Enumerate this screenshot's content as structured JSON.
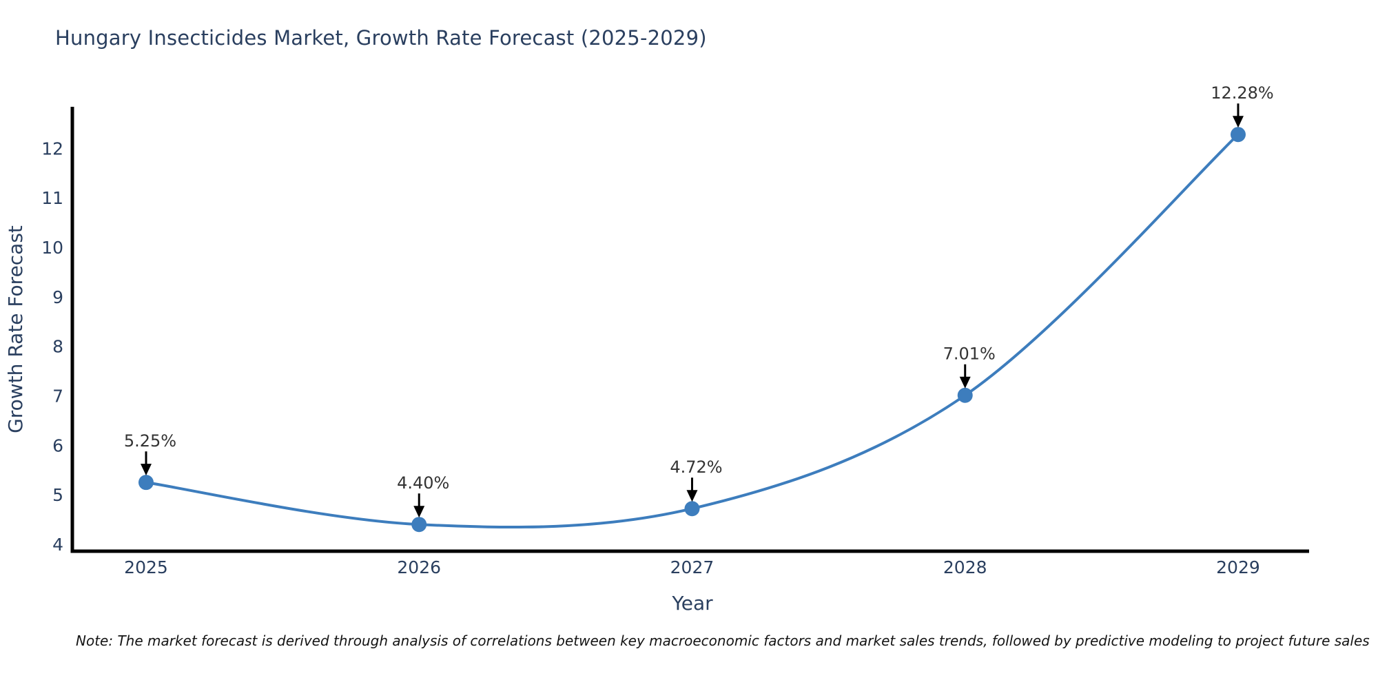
{
  "note": "Note: The market forecast is derived through analysis of correlations between key macroeconomic factors and market sales trends, followed by predictive modeling to project future sales",
  "chart_data": {
    "type": "line",
    "title": "Hungary Insecticides Market, Growth Rate Forecast (2025-2029)",
    "x": [
      2025,
      2026,
      2027,
      2028,
      2029
    ],
    "y": [
      5.25,
      4.4,
      4.72,
      7.01,
      12.28
    ],
    "point_labels": [
      "5.25%",
      "4.40%",
      "4.72%",
      "7.01%",
      "12.28%"
    ],
    "xlabel": "Year",
    "ylabel": "Growth Rate Forecast",
    "x_ticks": [
      "2025",
      "2026",
      "2027",
      "2028",
      "2029"
    ],
    "y_ticks": [
      "4",
      "5",
      "6",
      "7",
      "8",
      "9",
      "10",
      "11",
      "12"
    ],
    "xlim": [
      2024.73,
      2029.26
    ],
    "ylim": [
      3.86,
      12.84
    ],
    "grid": false,
    "legend": "none",
    "line_shape": "spline",
    "colors": {
      "line": "#3d7dbd",
      "marker": "#3d7dbd",
      "annotation_text": "#333333",
      "arrow": "#000000",
      "axis_text": "#2a3f5f",
      "spine": "#000000"
    }
  }
}
